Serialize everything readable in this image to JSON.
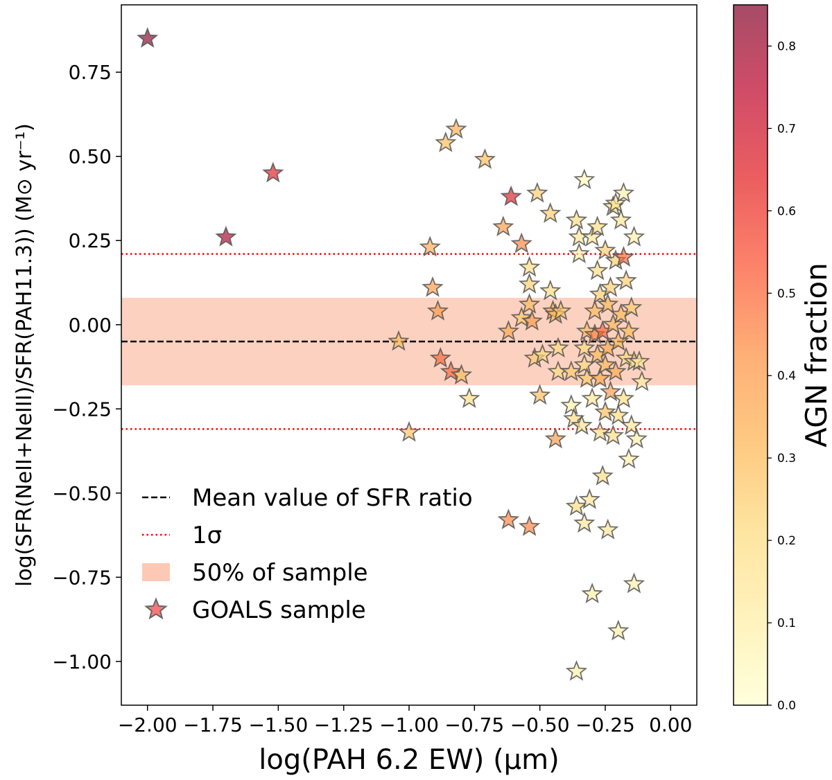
{
  "chart_data": {
    "type": "scatter",
    "xlabel": "log(PAH 6.2 EW) (μm)",
    "ylabel": "log(SFR(NeII+NeIII)/SFR(PAH11.3)) (M⊙ yr⁻¹)",
    "xlim": [
      -2.1,
      0.1
    ],
    "ylim": [
      -1.13,
      0.95
    ],
    "x_ticks": [
      -2.0,
      -1.75,
      -1.5,
      -1.25,
      -1.0,
      -0.75,
      -0.5,
      -0.25,
      0.0
    ],
    "x_tick_labels": [
      "−2.00",
      "−1.75",
      "−1.50",
      "−1.25",
      "−1.00",
      "−0.75",
      "−0.50",
      "−0.25",
      "0.00"
    ],
    "y_ticks": [
      -1.0,
      -0.75,
      -0.5,
      -0.25,
      0.0,
      0.25,
      0.5,
      0.75
    ],
    "y_tick_labels": [
      "−1.00",
      "−0.75",
      "−0.50",
      "−0.25",
      "0.00",
      "0.25",
      "0.50",
      "0.75"
    ],
    "grid": false,
    "mean_line": -0.05,
    "sigma_lines": [
      0.21,
      -0.31
    ],
    "band_50pct": [
      -0.18,
      0.08
    ],
    "colorbar": {
      "label": "AGN fraction",
      "range": [
        0.0,
        0.85
      ],
      "ticks": [
        0.0,
        0.1,
        0.2,
        0.3,
        0.4,
        0.5,
        0.6,
        0.7,
        0.8
      ],
      "tick_labels": [
        "0.0",
        "0.1",
        "0.2",
        "0.3",
        "0.4",
        "0.5",
        "0.6",
        "0.7",
        "0.8"
      ],
      "colors": [
        "#ffffcc",
        "#ffeda0",
        "#fed976",
        "#feb24c",
        "#fd8d3c",
        "#fc4e2a",
        "#e31a1c",
        "#bd0026",
        "#800026"
      ]
    },
    "legend": {
      "position": "lower-left",
      "entries": [
        {
          "label": "Mean value of SFR ratio",
          "style": "dashed",
          "color": "#000000"
        },
        {
          "label": "1σ",
          "style": "dotted",
          "color": "#ff0000"
        },
        {
          "label": "50% of sample",
          "style": "patch",
          "color": "#fdc9b5"
        },
        {
          "label": "GOALS sample",
          "style": "star",
          "color": "#f87878"
        }
      ]
    },
    "series": [
      {
        "name": "GOALS sample",
        "points": [
          {
            "x": -2.0,
            "y": 0.85,
            "c": 0.85
          },
          {
            "x": -1.7,
            "y": 0.26,
            "c": 0.78
          },
          {
            "x": -1.52,
            "y": 0.45,
            "c": 0.65
          },
          {
            "x": -1.04,
            "y": -0.05,
            "c": 0.3
          },
          {
            "x": -1.0,
            "y": -0.32,
            "c": 0.28
          },
          {
            "x": -0.92,
            "y": 0.23,
            "c": 0.35
          },
          {
            "x": -0.91,
            "y": 0.11,
            "c": 0.4
          },
          {
            "x": -0.89,
            "y": 0.04,
            "c": 0.4
          },
          {
            "x": -0.88,
            "y": -0.1,
            "c": 0.5
          },
          {
            "x": -0.84,
            "y": -0.14,
            "c": 0.5
          },
          {
            "x": -0.86,
            "y": 0.54,
            "c": 0.3
          },
          {
            "x": -0.82,
            "y": 0.58,
            "c": 0.35
          },
          {
            "x": -0.8,
            "y": -0.15,
            "c": 0.3
          },
          {
            "x": -0.77,
            "y": -0.22,
            "c": 0.2
          },
          {
            "x": -0.71,
            "y": 0.49,
            "c": 0.3
          },
          {
            "x": -0.64,
            "y": 0.29,
            "c": 0.4
          },
          {
            "x": -0.61,
            "y": 0.38,
            "c": 0.65
          },
          {
            "x": -0.62,
            "y": -0.02,
            "c": 0.35
          },
          {
            "x": -0.62,
            "y": -0.58,
            "c": 0.45
          },
          {
            "x": -0.57,
            "y": 0.24,
            "c": 0.45
          },
          {
            "x": -0.57,
            "y": 0.02,
            "c": 0.25
          },
          {
            "x": -0.54,
            "y": -0.6,
            "c": 0.45
          },
          {
            "x": -0.54,
            "y": 0.17,
            "c": 0.2
          },
          {
            "x": -0.54,
            "y": 0.12,
            "c": 0.25
          },
          {
            "x": -0.54,
            "y": 0.06,
            "c": 0.3
          },
          {
            "x": -0.53,
            "y": 0.01,
            "c": 0.4
          },
          {
            "x": -0.51,
            "y": 0.39,
            "c": 0.25
          },
          {
            "x": -0.52,
            "y": -0.1,
            "c": 0.25
          },
          {
            "x": -0.5,
            "y": -0.21,
            "c": 0.3
          },
          {
            "x": -0.49,
            "y": -0.09,
            "c": 0.2
          },
          {
            "x": -0.46,
            "y": 0.33,
            "c": 0.25
          },
          {
            "x": -0.46,
            "y": 0.1,
            "c": 0.2
          },
          {
            "x": -0.45,
            "y": 0.04,
            "c": 0.35
          },
          {
            "x": -0.44,
            "y": 0.03,
            "c": 0.3
          },
          {
            "x": -0.44,
            "y": -0.34,
            "c": 0.4
          },
          {
            "x": -0.43,
            "y": -0.14,
            "c": 0.2
          },
          {
            "x": -0.42,
            "y": 0.04,
            "c": 0.25
          },
          {
            "x": -0.43,
            "y": -0.07,
            "c": 0.2
          },
          {
            "x": -0.38,
            "y": -0.14,
            "c": 0.25
          },
          {
            "x": -0.38,
            "y": -0.24,
            "c": 0.1
          },
          {
            "x": -0.37,
            "y": -0.28,
            "c": 0.2
          },
          {
            "x": -0.36,
            "y": -0.54,
            "c": 0.2
          },
          {
            "x": -0.36,
            "y": 0.31,
            "c": 0.2
          },
          {
            "x": -0.35,
            "y": 0.26,
            "c": 0.15
          },
          {
            "x": -0.35,
            "y": 0.21,
            "c": 0.1
          },
          {
            "x": -0.36,
            "y": -1.03,
            "c": 0.1
          },
          {
            "x": -0.34,
            "y": -0.3,
            "c": 0.15
          },
          {
            "x": -0.33,
            "y": 0.43,
            "c": 0.05
          },
          {
            "x": -0.33,
            "y": -0.59,
            "c": 0.15
          },
          {
            "x": -0.33,
            "y": -0.07,
            "c": 0.2
          },
          {
            "x": -0.33,
            "y": -0.12,
            "c": 0.2
          },
          {
            "x": -0.32,
            "y": -0.02,
            "c": 0.3
          },
          {
            "x": -0.32,
            "y": -0.16,
            "c": 0.25
          },
          {
            "x": -0.31,
            "y": -0.52,
            "c": 0.15
          },
          {
            "x": -0.3,
            "y": -0.8,
            "c": 0.1
          },
          {
            "x": -0.3,
            "y": -0.22,
            "c": 0.15
          },
          {
            "x": -0.3,
            "y": 0.26,
            "c": 0.15
          },
          {
            "x": -0.29,
            "y": 0.04,
            "c": 0.3
          },
          {
            "x": -0.29,
            "y": -0.03,
            "c": 0.45
          },
          {
            "x": -0.28,
            "y": 0.16,
            "c": 0.2
          },
          {
            "x": -0.28,
            "y": 0.29,
            "c": 0.2
          },
          {
            "x": -0.28,
            "y": -0.09,
            "c": 0.3
          },
          {
            "x": -0.27,
            "y": -0.32,
            "c": 0.2
          },
          {
            "x": -0.27,
            "y": -0.16,
            "c": 0.35
          },
          {
            "x": -0.27,
            "y": 0.09,
            "c": 0.25
          },
          {
            "x": -0.26,
            "y": -0.45,
            "c": 0.2
          },
          {
            "x": -0.26,
            "y": -0.02,
            "c": 0.5
          },
          {
            "x": -0.25,
            "y": 0.22,
            "c": 0.25
          },
          {
            "x": -0.25,
            "y": -0.12,
            "c": 0.3
          },
          {
            "x": -0.25,
            "y": -0.26,
            "c": 0.3
          },
          {
            "x": -0.24,
            "y": -0.61,
            "c": 0.15
          },
          {
            "x": -0.24,
            "y": 0.06,
            "c": 0.3
          },
          {
            "x": -0.24,
            "y": -0.07,
            "c": 0.35
          },
          {
            "x": -0.23,
            "y": -0.2,
            "c": 0.4
          },
          {
            "x": -0.23,
            "y": 0.11,
            "c": 0.25
          },
          {
            "x": -0.22,
            "y": 0.35,
            "c": 0.2
          },
          {
            "x": -0.22,
            "y": -0.33,
            "c": 0.2
          },
          {
            "x": -0.22,
            "y": 0.0,
            "c": 0.3
          },
          {
            "x": -0.21,
            "y": 0.36,
            "c": 0.15
          },
          {
            "x": -0.21,
            "y": -0.14,
            "c": 0.35
          },
          {
            "x": -0.21,
            "y": 0.19,
            "c": 0.25
          },
          {
            "x": -0.2,
            "y": -0.91,
            "c": 0.1
          },
          {
            "x": -0.2,
            "y": -0.05,
            "c": 0.3
          },
          {
            "x": -0.2,
            "y": -0.27,
            "c": 0.2
          },
          {
            "x": -0.19,
            "y": 0.31,
            "c": 0.15
          },
          {
            "x": -0.19,
            "y": 0.03,
            "c": 0.3
          },
          {
            "x": -0.18,
            "y": 0.39,
            "c": 0.1
          },
          {
            "x": -0.18,
            "y": -0.22,
            "c": 0.2
          },
          {
            "x": -0.18,
            "y": 0.2,
            "c": 0.5
          },
          {
            "x": -0.17,
            "y": -0.1,
            "c": 0.2
          },
          {
            "x": -0.17,
            "y": 0.13,
            "c": 0.25
          },
          {
            "x": -0.16,
            "y": -0.4,
            "c": 0.1
          },
          {
            "x": -0.16,
            "y": -0.02,
            "c": 0.3
          },
          {
            "x": -0.15,
            "y": 0.05,
            "c": 0.25
          },
          {
            "x": -0.15,
            "y": -0.3,
            "c": 0.15
          },
          {
            "x": -0.14,
            "y": -0.77,
            "c": 0.1
          },
          {
            "x": -0.14,
            "y": -0.11,
            "c": 0.15
          },
          {
            "x": -0.14,
            "y": 0.26,
            "c": 0.1
          },
          {
            "x": -0.13,
            "y": -0.34,
            "c": 0.1
          },
          {
            "x": -0.12,
            "y": -0.11,
            "c": 0.15
          },
          {
            "x": -0.11,
            "y": -0.17,
            "c": 0.1
          }
        ]
      }
    ]
  }
}
